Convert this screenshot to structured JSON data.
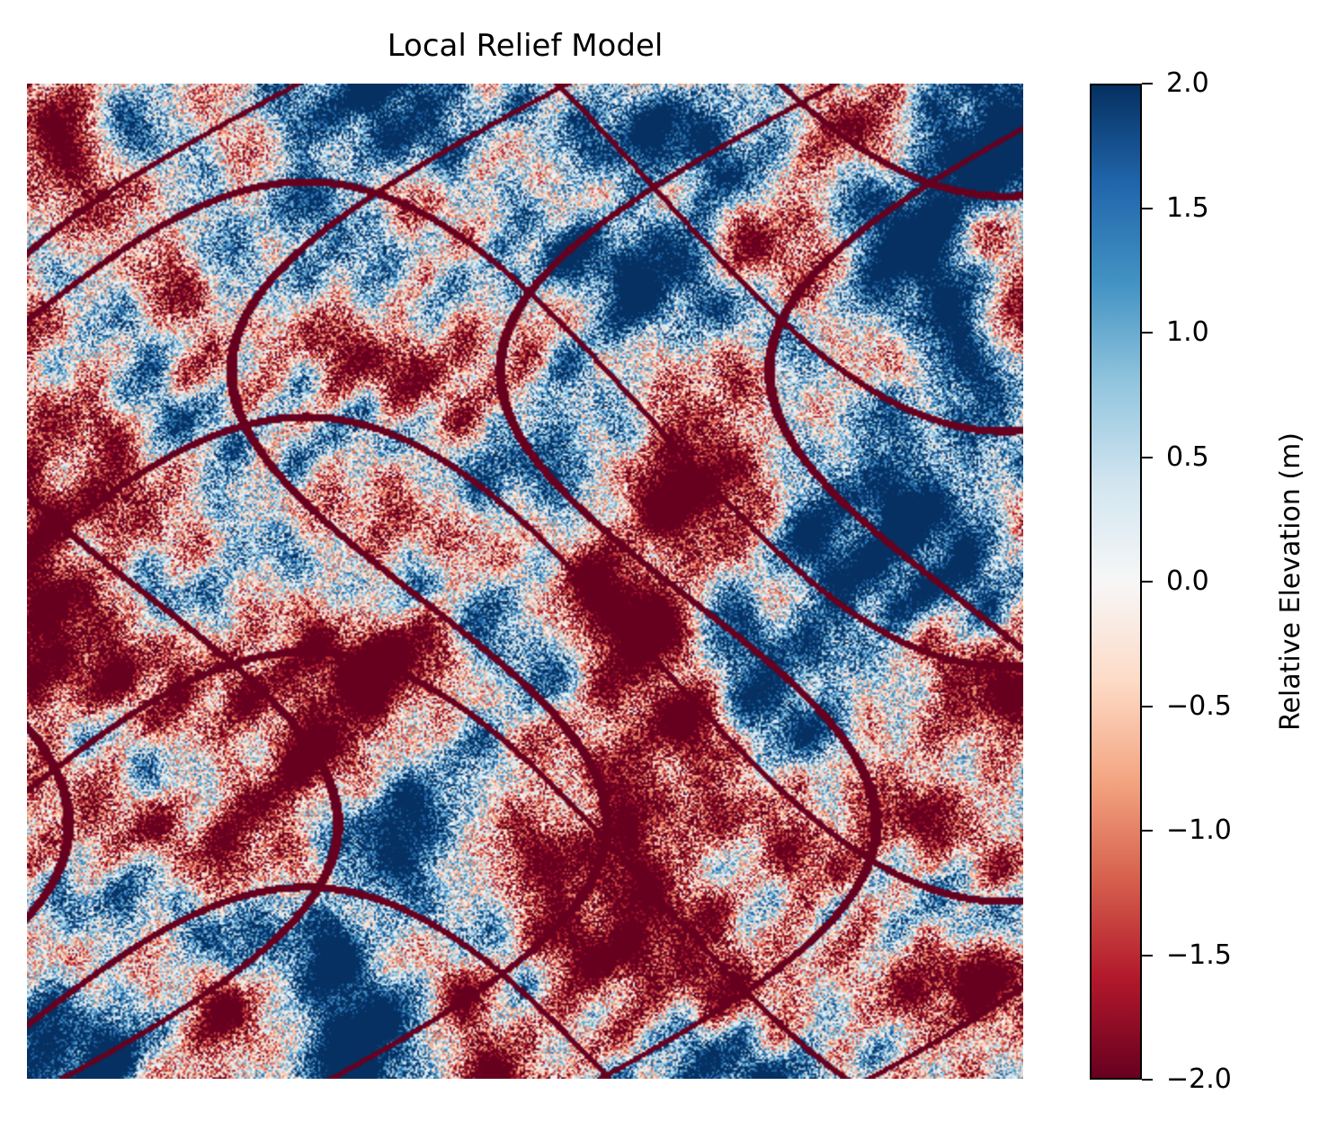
{
  "chart_data": {
    "type": "heatmap",
    "title": "Local Relief Model",
    "colormap": {
      "name": "RdBu",
      "stops": [
        "#67001f",
        "#b2182b",
        "#d6604d",
        "#f4a582",
        "#fddbc7",
        "#f7f7f7",
        "#d1e5f0",
        "#92c5de",
        "#4393c3",
        "#2166ac",
        "#053061"
      ]
    },
    "value_range": [
      -2.0,
      2.0
    ],
    "colorbar": {
      "label": "Relative Elevation (m)",
      "ticks": [
        -2.0,
        -1.5,
        -1.0,
        -0.5,
        0.0,
        0.5,
        1.0,
        1.5,
        2.0
      ],
      "tick_labels": [
        "−2.0",
        "−1.5",
        "−1.0",
        "−0.5",
        "0.0",
        "0.5",
        "1.0",
        "1.5",
        "2.0"
      ]
    },
    "axes_visible": false
  }
}
